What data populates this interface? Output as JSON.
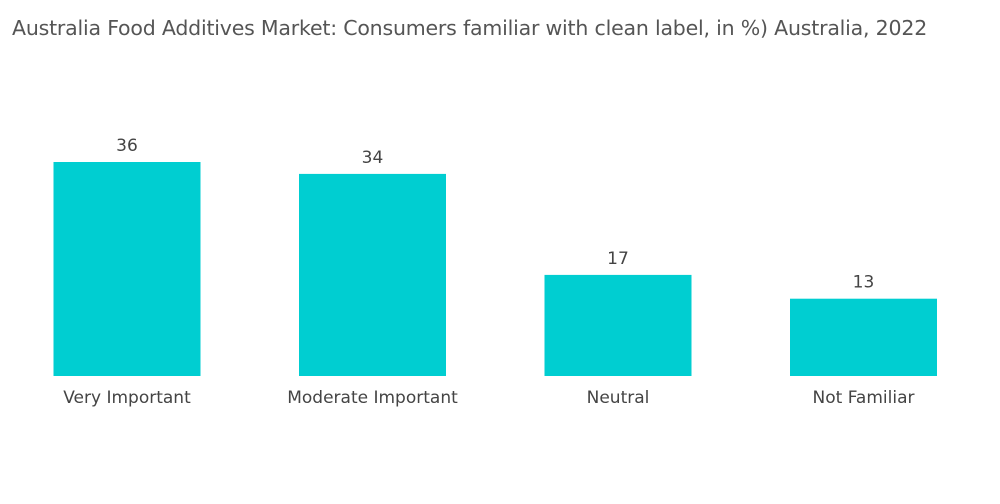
{
  "chart_data": {
    "type": "bar",
    "title": "Australia Food Additives Market: Consumers familiar with clean label, in %) Australia, 2022",
    "categories": [
      "Very Important",
      "Moderate Important",
      "Neutral",
      "Not Familiar"
    ],
    "values": [
      36,
      34,
      17,
      13
    ],
    "value_labels": [
      "36",
      "34",
      "17",
      "13"
    ],
    "xlabel": "",
    "ylabel": "",
    "ylim": [
      0,
      36
    ],
    "grid": false,
    "legend": "none",
    "bar_color": "#00CED1"
  }
}
